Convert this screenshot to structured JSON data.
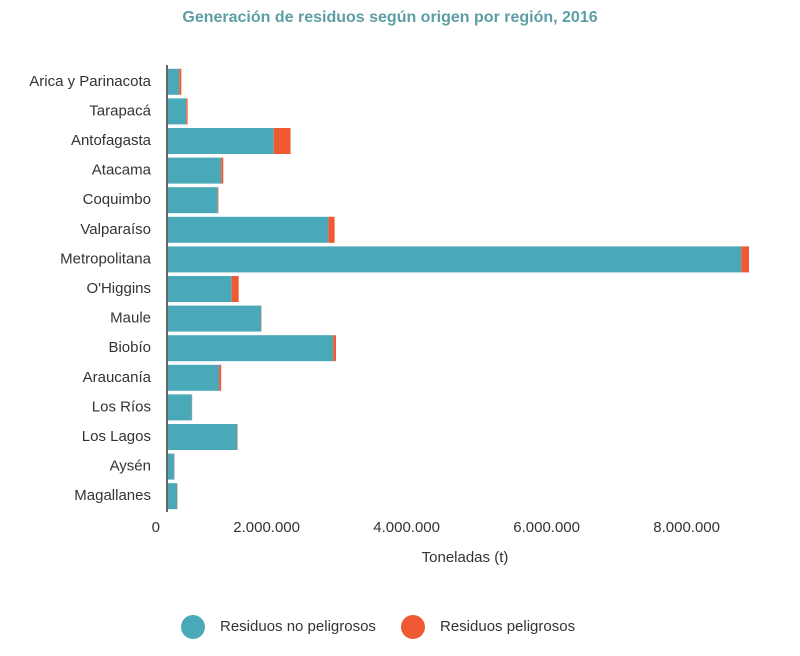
{
  "chart_data": {
    "type": "stacked_barh",
    "title": "Generación de residuos según origen por región, 2016",
    "xlabel": "Toneladas (t)",
    "categories": [
      "Arica y Parinacota",
      "Tarapacá",
      "Antofagasta",
      "Atacama",
      "Coquimbo",
      "Valparaíso",
      "Metropolitana",
      "O'Higgins",
      "Maule",
      "Biobío",
      "Araucanía",
      "Los Ríos",
      "Los Lagos",
      "Aysén",
      "Magallanes"
    ],
    "series": [
      {
        "name": "Residuos no peligrosos",
        "color": "#4aa9b8",
        "values": [
          160000,
          260000,
          1510000,
          760000,
          710000,
          2290000,
          8190000,
          910000,
          1330000,
          2360000,
          730000,
          340000,
          990000,
          90000,
          130000
        ]
      },
      {
        "name": "Residuos peligrosos",
        "color": "#ef5a33",
        "values": [
          30000,
          20000,
          240000,
          30000,
          10000,
          90000,
          110000,
          100000,
          5000,
          40000,
          30000,
          5000,
          5000,
          3000,
          5000
        ]
      }
    ],
    "xlim": [
      0,
      8500000
    ],
    "xticks": [
      0,
      {
        "value": 2000000,
        "label": "2.000.000"
      },
      {
        "value": 4000000,
        "label": "4.000.000"
      },
      {
        "value": 6000000,
        "label": "6.000.000"
      },
      {
        "value": 8000000,
        "label": "8.000.000"
      }
    ],
    "legend": "bottom"
  }
}
